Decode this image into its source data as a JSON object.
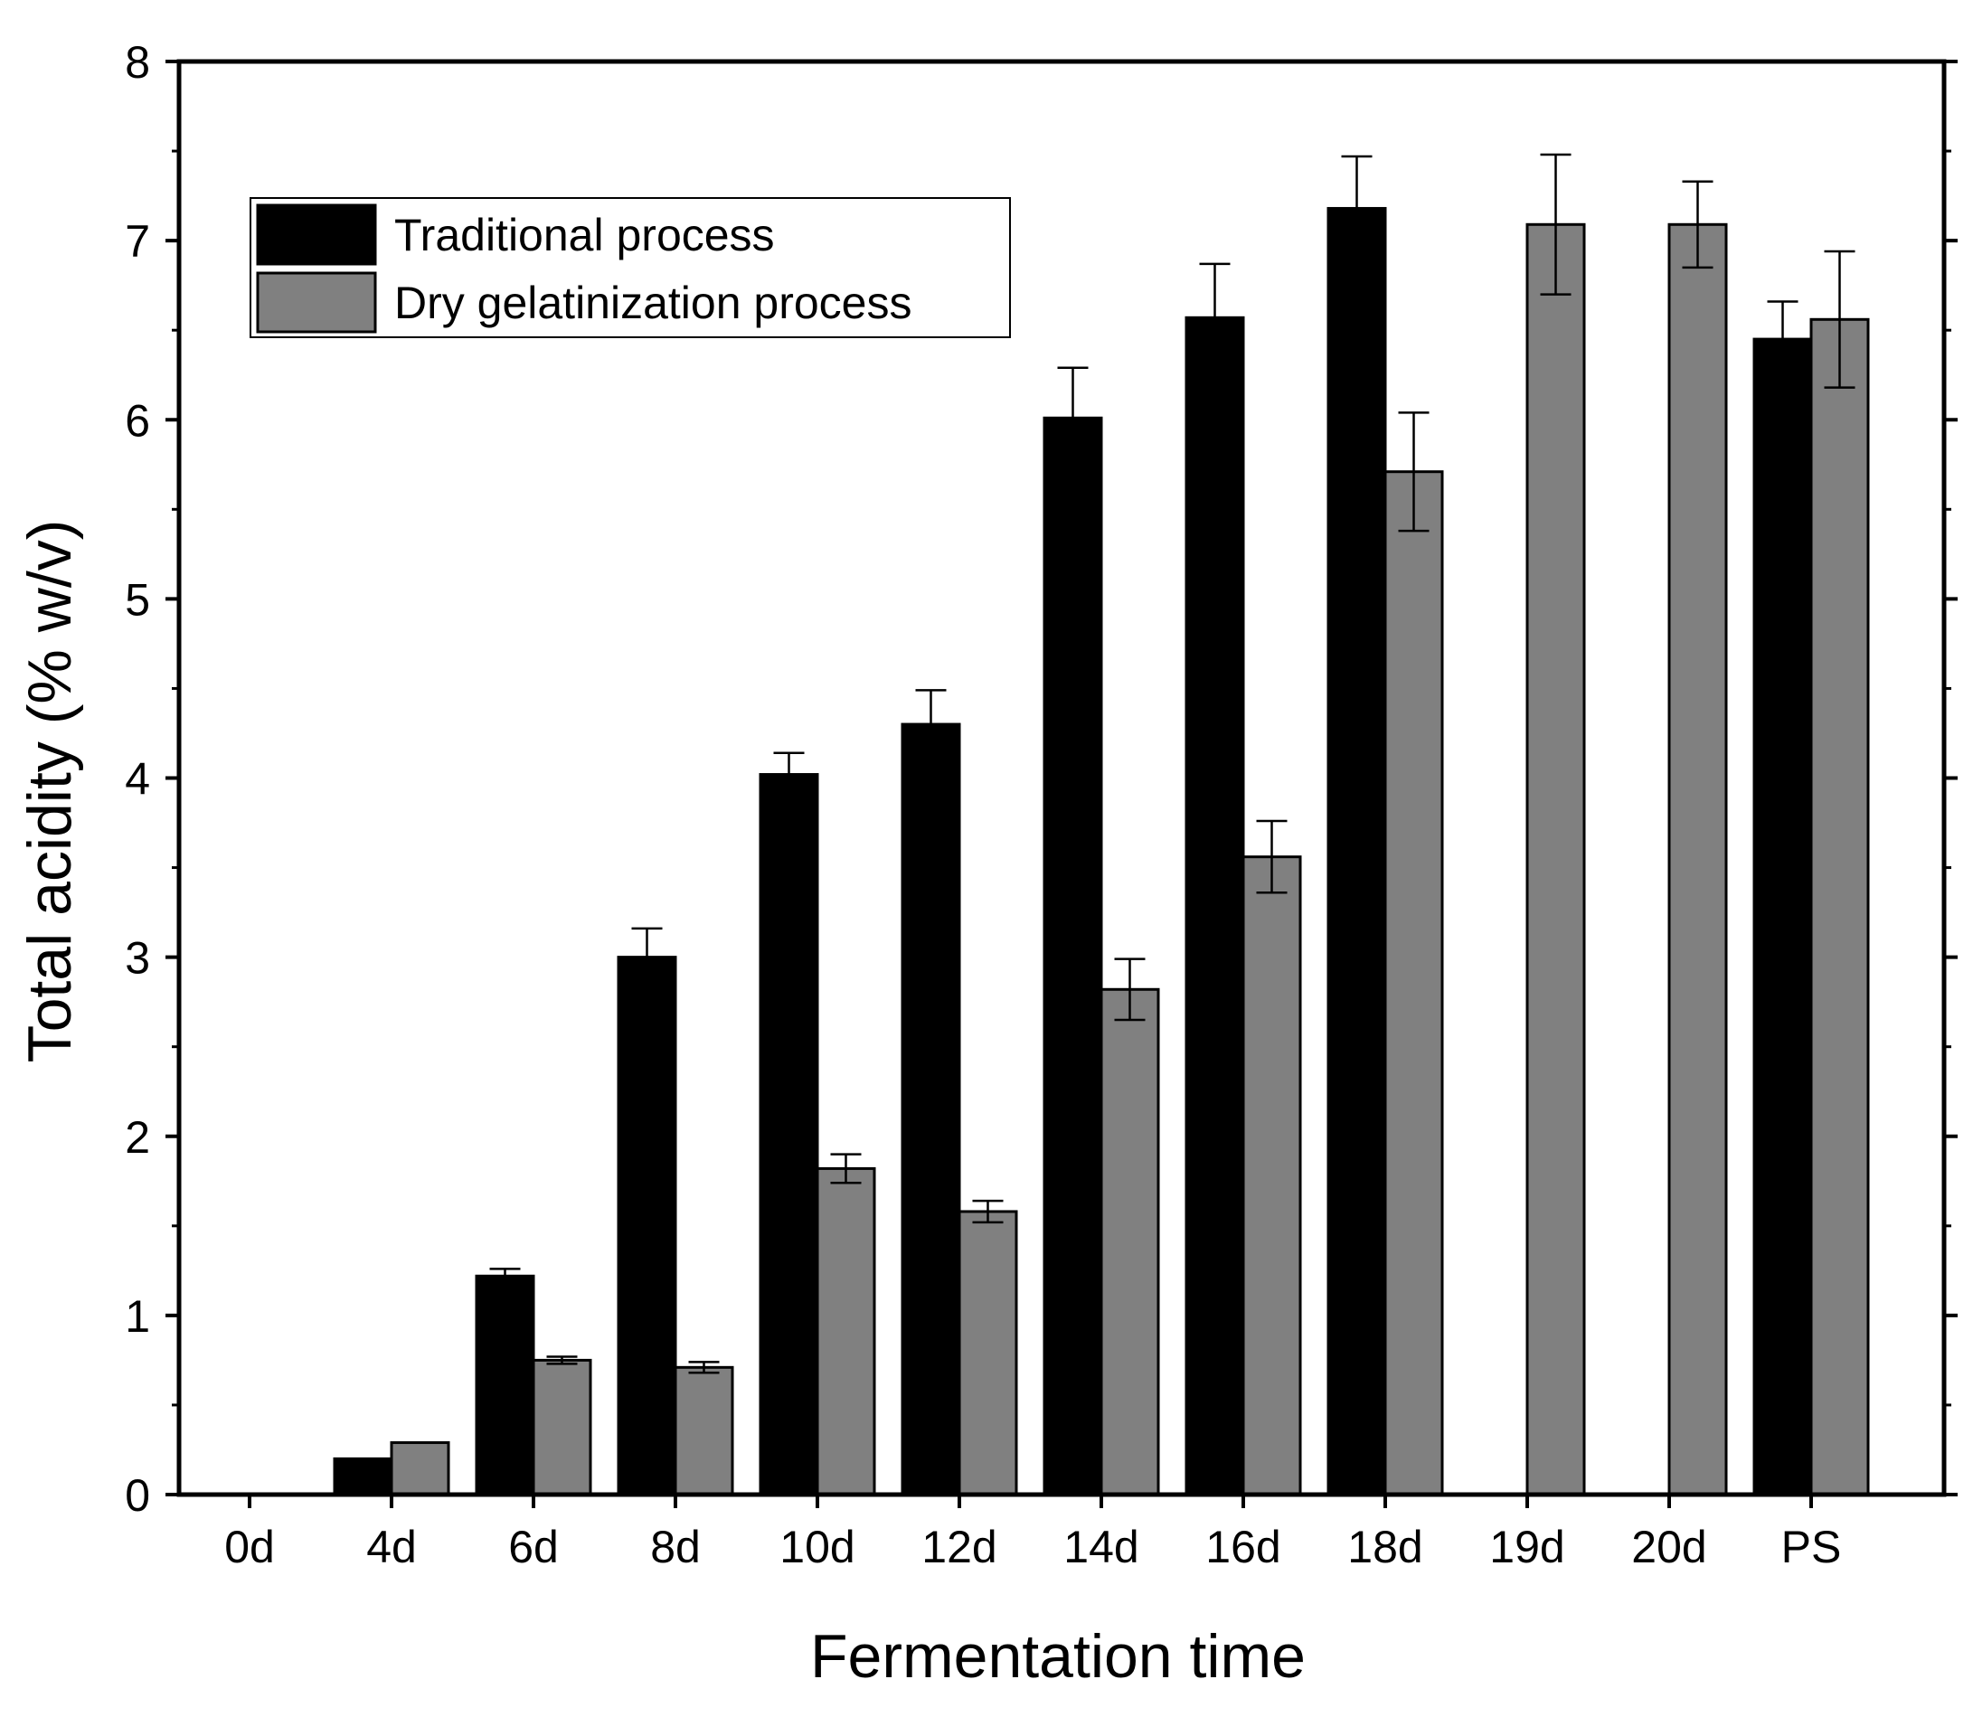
{
  "chart_data": {
    "type": "bar",
    "title": "",
    "xlabel": "Fermentation time",
    "ylabel": "Total acidity (% w/v)",
    "ylim": [
      0,
      8
    ],
    "yticks": [
      0,
      1,
      2,
      3,
      4,
      5,
      6,
      7,
      8
    ],
    "categories": [
      "0d",
      "4d",
      "6d",
      "8d",
      "10d",
      "12d",
      "14d",
      "16d",
      "18d",
      "19d",
      "20d",
      "PS"
    ],
    "series": [
      {
        "name": "Traditional process",
        "color": "#000000",
        "values": [
          null,
          0.2,
          1.22,
          3.0,
          4.02,
          4.3,
          6.01,
          6.57,
          7.18,
          null,
          null,
          6.45
        ],
        "errors": [
          null,
          0,
          0.04,
          0.16,
          0.12,
          0.19,
          0.28,
          0.3,
          0.29,
          null,
          null,
          0.21
        ]
      },
      {
        "name": "Dry gelatinization process",
        "color": "#808080",
        "values": [
          null,
          0.29,
          0.75,
          0.71,
          1.82,
          1.58,
          2.82,
          3.56,
          5.71,
          7.09,
          7.09,
          6.56
        ],
        "errors": [
          null,
          0,
          0.02,
          0.03,
          0.08,
          0.06,
          0.17,
          0.2,
          0.33,
          0.39,
          0.24,
          0.38
        ]
      }
    ],
    "legend_position": "top-left",
    "grid": false
  }
}
